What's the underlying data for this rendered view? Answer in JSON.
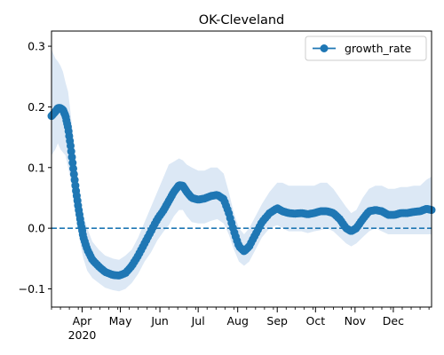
{
  "chart_data": {
    "type": "line",
    "title": "OK-Cleveland",
    "xlabel": "",
    "ylabel": "",
    "xlim": [
      "2020-03-08",
      "2020-12-31"
    ],
    "ylim": [
      -0.13,
      0.325
    ],
    "yticks": [
      {
        "value": -0.1,
        "label": "−0.1"
      },
      {
        "value": 0.0,
        "label": "0.0"
      },
      {
        "value": 0.1,
        "label": "0.1"
      },
      {
        "value": 0.2,
        "label": "0.2"
      },
      {
        "value": 0.3,
        "label": "0.3"
      }
    ],
    "xticks": [
      {
        "date": "2020-04-01",
        "label": "Apr",
        "sublabel": "2020"
      },
      {
        "date": "2020-05-01",
        "label": "May"
      },
      {
        "date": "2020-06-01",
        "label": "Jun"
      },
      {
        "date": "2020-07-01",
        "label": "Jul"
      },
      {
        "date": "2020-08-01",
        "label": "Aug"
      },
      {
        "date": "2020-09-01",
        "label": "Sep"
      },
      {
        "date": "2020-10-01",
        "label": "Oct"
      },
      {
        "date": "2020-11-01",
        "label": "Nov"
      },
      {
        "date": "2020-12-01",
        "label": "Dec"
      }
    ],
    "reference_line": {
      "y": 0.0,
      "style": "dashed",
      "color": "#1f77b4"
    },
    "legend": {
      "placement": "top-right",
      "entries": [
        "growth_rate"
      ]
    },
    "grid": false,
    "series": [
      {
        "name": "growth_rate",
        "color": "#1f77b4",
        "band_color": "#dce8f5",
        "marker": "circle",
        "points": [
          [
            "2020-03-08",
            0.185,
            0.295,
            0.12
          ],
          [
            "2020-03-11",
            0.192,
            0.28,
            0.13
          ],
          [
            "2020-03-13",
            0.198,
            0.275,
            0.14
          ],
          [
            "2020-03-15",
            0.198,
            0.268,
            0.13
          ],
          [
            "2020-03-17",
            0.195,
            0.258,
            0.125
          ],
          [
            "2020-03-19",
            0.185,
            0.24,
            0.12
          ],
          [
            "2020-03-21",
            0.165,
            0.225,
            0.1
          ],
          [
            "2020-03-23",
            0.135,
            0.19,
            0.08
          ],
          [
            "2020-03-25",
            0.1,
            0.15,
            0.05
          ],
          [
            "2020-03-27",
            0.065,
            0.11,
            0.02
          ],
          [
            "2020-03-29",
            0.035,
            0.075,
            -0.005
          ],
          [
            "2020-03-31",
            0.008,
            0.045,
            -0.03
          ],
          [
            "2020-04-02",
            -0.015,
            0.02,
            -0.05
          ],
          [
            "2020-04-05",
            -0.035,
            0.0,
            -0.07
          ],
          [
            "2020-04-09",
            -0.052,
            -0.022,
            -0.082
          ],
          [
            "2020-04-14",
            -0.063,
            -0.035,
            -0.09
          ],
          [
            "2020-04-19",
            -0.072,
            -0.045,
            -0.098
          ],
          [
            "2020-04-25",
            -0.077,
            -0.05,
            -0.102
          ],
          [
            "2020-04-30",
            -0.078,
            -0.052,
            -0.104
          ],
          [
            "2020-05-05",
            -0.074,
            -0.045,
            -0.1
          ],
          [
            "2020-05-10",
            -0.062,
            -0.035,
            -0.09
          ],
          [
            "2020-05-15",
            -0.045,
            -0.015,
            -0.075
          ],
          [
            "2020-05-20",
            -0.025,
            0.01,
            -0.055
          ],
          [
            "2020-05-25",
            -0.005,
            0.035,
            -0.04
          ],
          [
            "2020-05-30",
            0.015,
            0.06,
            -0.02
          ],
          [
            "2020-06-04",
            0.03,
            0.085,
            -0.005
          ],
          [
            "2020-06-08",
            0.045,
            0.105,
            0.005
          ],
          [
            "2020-06-12",
            0.06,
            0.11,
            0.02
          ],
          [
            "2020-06-16",
            0.071,
            0.115,
            0.03
          ],
          [
            "2020-06-19",
            0.07,
            0.112,
            0.03
          ],
          [
            "2020-06-22",
            0.06,
            0.105,
            0.02
          ],
          [
            "2020-06-26",
            0.05,
            0.1,
            0.01
          ],
          [
            "2020-07-01",
            0.047,
            0.095,
            0.008
          ],
          [
            "2020-07-06",
            0.049,
            0.095,
            0.008
          ],
          [
            "2020-07-11",
            0.053,
            0.1,
            0.012
          ],
          [
            "2020-07-16",
            0.055,
            0.1,
            0.015
          ],
          [
            "2020-07-21",
            0.048,
            0.09,
            0.008
          ],
          [
            "2020-07-25",
            0.025,
            0.06,
            -0.01
          ],
          [
            "2020-07-29",
            -0.005,
            0.025,
            -0.035
          ],
          [
            "2020-08-02",
            -0.03,
            0.0,
            -0.055
          ],
          [
            "2020-08-06",
            -0.038,
            -0.01,
            -0.062
          ],
          [
            "2020-08-10",
            -0.03,
            0.0,
            -0.055
          ],
          [
            "2020-08-15",
            -0.01,
            0.02,
            -0.035
          ],
          [
            "2020-08-20",
            0.01,
            0.04,
            -0.015
          ],
          [
            "2020-08-26",
            0.025,
            0.06,
            0.0
          ],
          [
            "2020-09-01",
            0.033,
            0.075,
            0.005
          ],
          [
            "2020-09-05",
            0.028,
            0.075,
            0.0
          ],
          [
            "2020-09-10",
            0.025,
            0.07,
            -0.005
          ],
          [
            "2020-09-15",
            0.024,
            0.07,
            -0.005
          ],
          [
            "2020-09-20",
            0.025,
            0.07,
            -0.005
          ],
          [
            "2020-09-25",
            0.023,
            0.07,
            -0.008
          ],
          [
            "2020-09-30",
            0.025,
            0.07,
            -0.005
          ],
          [
            "2020-10-05",
            0.028,
            0.075,
            -0.003
          ],
          [
            "2020-10-10",
            0.028,
            0.075,
            0.0
          ],
          [
            "2020-10-15",
            0.025,
            0.065,
            -0.005
          ],
          [
            "2020-10-20",
            0.015,
            0.05,
            -0.015
          ],
          [
            "2020-10-25",
            0.0,
            0.035,
            -0.025
          ],
          [
            "2020-10-29",
            -0.005,
            0.025,
            -0.03
          ],
          [
            "2020-11-02",
            0.0,
            0.03,
            -0.025
          ],
          [
            "2020-11-07",
            0.015,
            0.05,
            -0.015
          ],
          [
            "2020-11-12",
            0.028,
            0.065,
            -0.005
          ],
          [
            "2020-11-17",
            0.03,
            0.07,
            0.0
          ],
          [
            "2020-11-22",
            0.028,
            0.07,
            -0.005
          ],
          [
            "2020-11-27",
            0.022,
            0.065,
            -0.01
          ],
          [
            "2020-12-02",
            0.022,
            0.065,
            -0.01
          ],
          [
            "2020-12-07",
            0.025,
            0.068,
            -0.01
          ],
          [
            "2020-12-12",
            0.025,
            0.068,
            -0.01
          ],
          [
            "2020-12-17",
            0.027,
            0.07,
            -0.01
          ],
          [
            "2020-12-22",
            0.028,
            0.07,
            -0.01
          ],
          [
            "2020-12-27",
            0.032,
            0.08,
            -0.01
          ],
          [
            "2020-12-31",
            0.03,
            0.085,
            -0.01
          ]
        ]
      }
    ]
  }
}
